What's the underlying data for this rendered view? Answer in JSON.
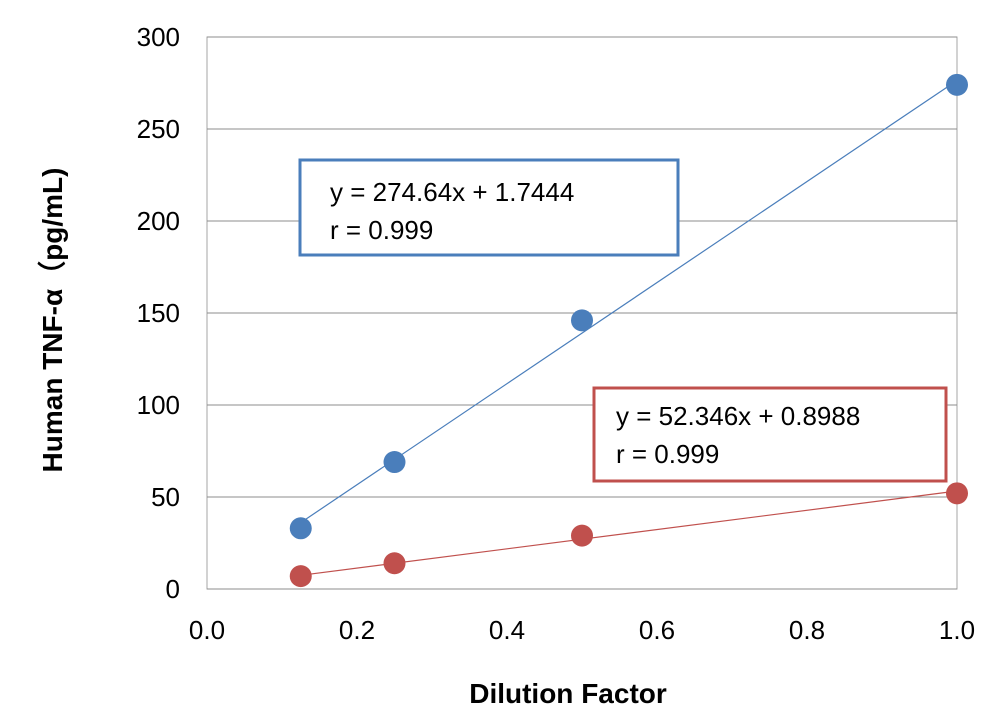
{
  "chart_data": {
    "type": "scatter",
    "xlabel": "Dilution Factor",
    "ylabel": "Human TNF-α（pg/mL)",
    "xlim": [
      0.0,
      1.0
    ],
    "ylim": [
      0,
      300
    ],
    "x_ticks": [
      "0.0",
      "0.2",
      "0.4",
      "0.6",
      "0.8",
      "1.0"
    ],
    "y_ticks": [
      "0",
      "50",
      "100",
      "150",
      "200",
      "250",
      "300"
    ],
    "grid": true,
    "series": [
      {
        "color": "#4a7ebb",
        "x": [
          0.125,
          0.25,
          0.5,
          1.0
        ],
        "y": [
          33,
          69,
          146,
          274
        ],
        "trendline": {
          "slope": 274.64,
          "intercept": 1.7444
        },
        "annotation": [
          "y = 274.64x + 1.7444",
          "r = 0.999"
        ]
      },
      {
        "color": "#c0504d",
        "x": [
          0.125,
          0.25,
          0.5,
          1.0
        ],
        "y": [
          7,
          14,
          29,
          52
        ],
        "trendline": {
          "slope": 52.346,
          "intercept": 0.8988
        },
        "annotation": [
          "y = 52.346x + 0.8988",
          "r = 0.999"
        ]
      }
    ]
  }
}
